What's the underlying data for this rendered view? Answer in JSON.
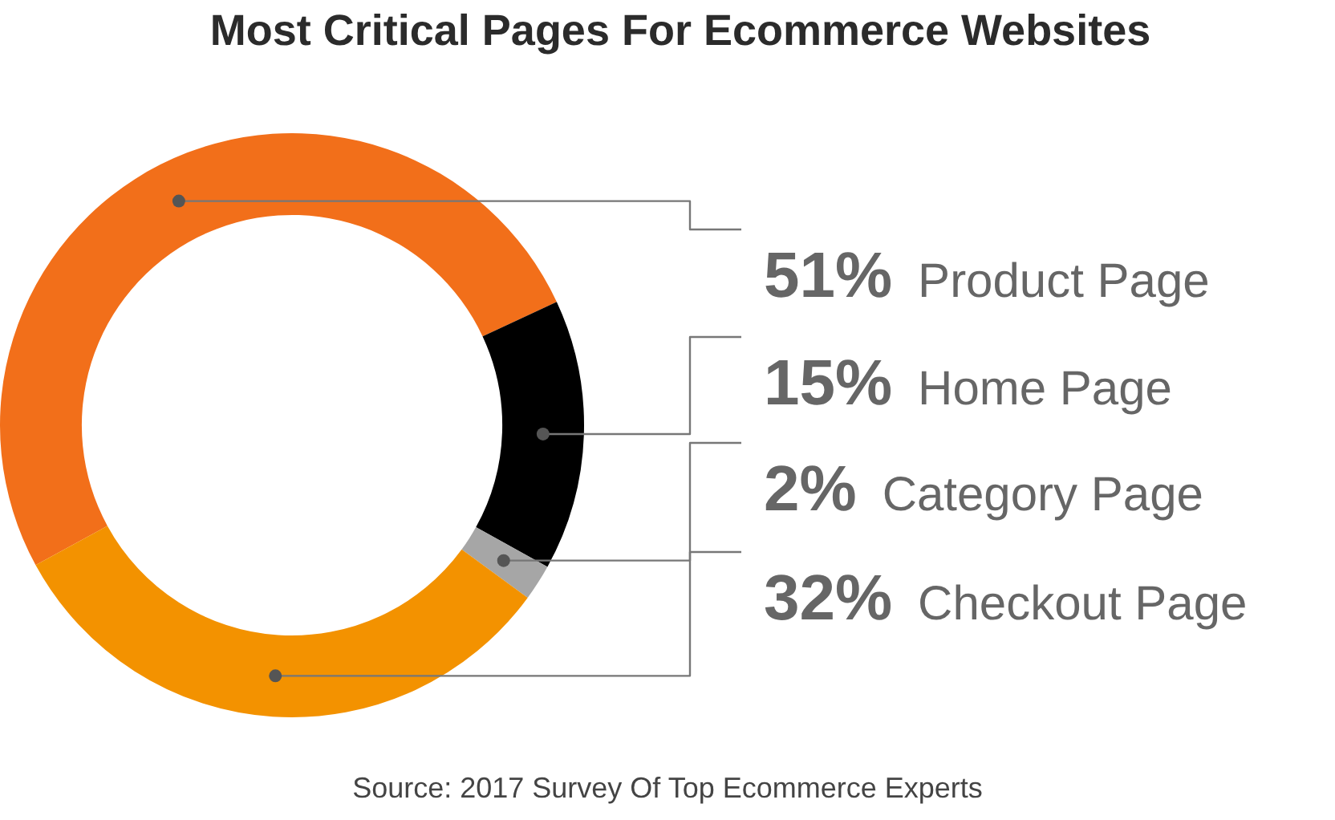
{
  "chart_data": {
    "type": "donut",
    "title": "Most Critical Pages For Ecommerce Websites",
    "categories": [
      "Product Page",
      "Home Page",
      "Category Page",
      "Checkout Page"
    ],
    "values": [
      51,
      15,
      2,
      32
    ],
    "value_labels": [
      "51%",
      "15%",
      "2%",
      "32%"
    ],
    "colors": [
      "#f26f1a",
      "#000000",
      "#a6a6a6",
      "#f39200"
    ],
    "legend": false,
    "annotations": [
      "Source: 2017 Survey Of Top Ecommerce Experts"
    ]
  }
}
